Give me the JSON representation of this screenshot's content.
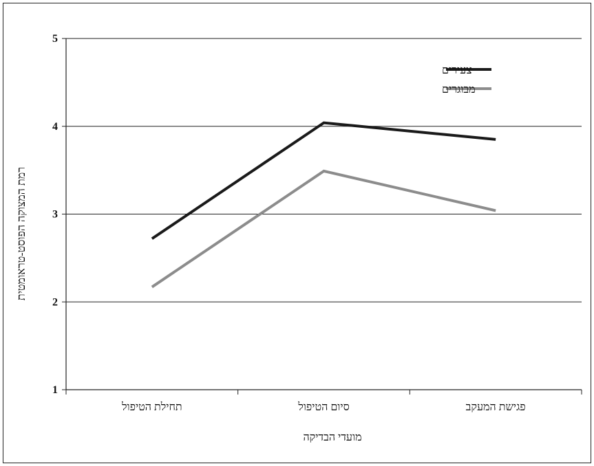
{
  "chart_data": {
    "type": "line",
    "categories": [
      "תחילת הטיפול",
      "סיום הטיפול",
      "פגישת המעקב"
    ],
    "series": [
      {
        "name": "צעירים",
        "values": [
          2.72,
          4.04,
          3.85
        ],
        "color": "#1a1a1a"
      },
      {
        "name": "מבוגרים",
        "values": [
          2.17,
          3.49,
          3.04
        ],
        "color": "#8c8c8c"
      }
    ],
    "xlabel": "מועדי הבדיקה",
    "ylabel": "רמת המצוקה הפוסט-טראומטית",
    "ylim": [
      1,
      5
    ],
    "yticks": [
      "1",
      "2",
      "3",
      "4",
      "5"
    ],
    "grid": "horizontal",
    "legend": "top-right"
  }
}
